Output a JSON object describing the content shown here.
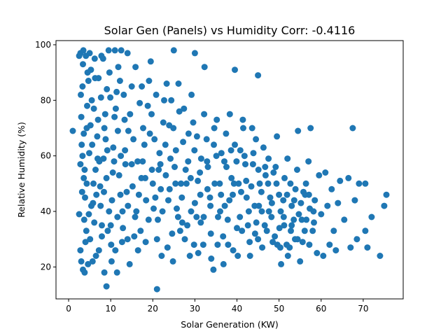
{
  "chart_data": {
    "type": "scatter",
    "title": "Solar Gen (Panels) vs Humidity Corr: -0.4116",
    "xlabel": "Solar Generation (KW)",
    "ylabel": "Relative Humidity (%)",
    "xlim": [
      -3.0,
      79.5
    ],
    "ylim": [
      8.5,
      101.5
    ],
    "xticks": [
      0,
      10,
      20,
      30,
      40,
      50,
      60,
      70
    ],
    "yticks": [
      20,
      40,
      60,
      80,
      100
    ],
    "grid": false,
    "legend": "none",
    "marker_color": "#1f77b4",
    "correlation": -0.4116,
    "points": [
      [
        1.0,
        69
      ],
      [
        2.5,
        96
      ],
      [
        2.8,
        97
      ],
      [
        3.5,
        98
      ],
      [
        4.1,
        96
      ],
      [
        5.0,
        97
      ],
      [
        6.2,
        95
      ],
      [
        7.8,
        96
      ],
      [
        9.5,
        98
      ],
      [
        11.0,
        98
      ],
      [
        12.5,
        98
      ],
      [
        14.0,
        97
      ],
      [
        2.5,
        39
      ],
      [
        2.8,
        26
      ],
      [
        3.0,
        22
      ],
      [
        3.4,
        19
      ],
      [
        3.8,
        18
      ],
      [
        4.6,
        21
      ],
      [
        5.7,
        22
      ],
      [
        7.2,
        26
      ],
      [
        8.5,
        18
      ],
      [
        9.0,
        13
      ],
      [
        10.2,
        22
      ],
      [
        11.5,
        18
      ],
      [
        2.8,
        57
      ],
      [
        3.1,
        64
      ],
      [
        3.0,
        74
      ],
      [
        3.3,
        85
      ],
      [
        3.6,
        52
      ],
      [
        3.9,
        45
      ],
      [
        4.2,
        33
      ],
      [
        4.5,
        90
      ],
      [
        4.9,
        61
      ],
      [
        5.2,
        71
      ],
      [
        5.5,
        80
      ],
      [
        5.8,
        43
      ],
      [
        6.1,
        36
      ],
      [
        6.4,
        55
      ],
      [
        6.8,
        67
      ],
      [
        7.1,
        88
      ],
      [
        7.5,
        49
      ],
      [
        7.9,
        31
      ],
      [
        8.3,
        59
      ],
      [
        8.7,
        75
      ],
      [
        9.1,
        84
      ],
      [
        9.6,
        40
      ],
      [
        10.1,
        28
      ],
      [
        10.6,
        63
      ],
      [
        11.2,
        77
      ],
      [
        11.8,
        92
      ],
      [
        12.3,
        46
      ],
      [
        12.9,
        34
      ],
      [
        13.5,
        57
      ],
      [
        14.2,
        69
      ],
      [
        15.0,
        85
      ],
      [
        15.8,
        38
      ],
      [
        16.5,
        26
      ],
      [
        17.3,
        52
      ],
      [
        18.0,
        64
      ],
      [
        18.8,
        78
      ],
      [
        19.5,
        94
      ],
      [
        20.2,
        41
      ],
      [
        21.0,
        30
      ],
      [
        21.0,
        12
      ],
      [
        21.8,
        57
      ],
      [
        22.5,
        72
      ],
      [
        23.3,
        86
      ],
      [
        24.0,
        48
      ],
      [
        24.8,
        22
      ],
      [
        25.0,
        98
      ],
      [
        25.5,
        62
      ],
      [
        26.3,
        76
      ],
      [
        27.0,
        36
      ],
      [
        27.8,
        55
      ],
      [
        28.5,
        68
      ],
      [
        29.2,
        82
      ],
      [
        30.0,
        97
      ],
      [
        30.0,
        43
      ],
      [
        30.8,
        25
      ],
      [
        31.5,
        59
      ],
      [
        32.3,
        92
      ],
      [
        33.0,
        48
      ],
      [
        33.8,
        32
      ],
      [
        34.5,
        64
      ],
      [
        35.2,
        73
      ],
      [
        36.0,
        40
      ],
      [
        36.8,
        21
      ],
      [
        37.5,
        56
      ],
      [
        38.3,
        75
      ],
      [
        39.0,
        46
      ],
      [
        39.5,
        91
      ],
      [
        40.0,
        34
      ],
      [
        40.8,
        62
      ],
      [
        41.5,
        70
      ],
      [
        42.2,
        51
      ],
      [
        43.0,
        29
      ],
      [
        43.8,
        57
      ],
      [
        44.5,
        66
      ],
      [
        45.0,
        89
      ],
      [
        45.2,
        42
      ],
      [
        46.0,
        27
      ],
      [
        46.8,
        53
      ],
      [
        47.5,
        59
      ],
      [
        48.2,
        38
      ],
      [
        49.0,
        31
      ],
      [
        49.5,
        67
      ],
      [
        50.0,
        46
      ],
      [
        50.5,
        21
      ],
      [
        51.2,
        35
      ],
      [
        52.0,
        59
      ],
      [
        52.5,
        27
      ],
      [
        53.0,
        42
      ],
      [
        53.8,
        30
      ],
      [
        54.5,
        69
      ],
      [
        55.0,
        22
      ],
      [
        55.8,
        47
      ],
      [
        56.5,
        37
      ],
      [
        57.0,
        58
      ],
      [
        57.5,
        70
      ],
      [
        58.0,
        33
      ],
      [
        58.5,
        44
      ],
      [
        59.0,
        25
      ],
      [
        59.5,
        53
      ],
      [
        60.0,
        39
      ],
      [
        60.5,
        24
      ],
      [
        61.0,
        54
      ],
      [
        61.5,
        42
      ],
      [
        62.0,
        28
      ],
      [
        62.5,
        48
      ],
      [
        63.0,
        33
      ],
      [
        63.5,
        26
      ],
      [
        64.0,
        43
      ],
      [
        64.5,
        51
      ],
      [
        65.5,
        37
      ],
      [
        66.5,
        52
      ],
      [
        67.0,
        27
      ],
      [
        67.5,
        70
      ],
      [
        68.0,
        44
      ],
      [
        68.5,
        30
      ],
      [
        69.0,
        50
      ],
      [
        70.5,
        33
      ],
      [
        70.5,
        50
      ],
      [
        71.0,
        27
      ],
      [
        72.0,
        38
      ],
      [
        74.0,
        24
      ],
      [
        75.0,
        42
      ],
      [
        75.5,
        46
      ],
      [
        3.2,
        47
      ],
      [
        3.6,
        68
      ],
      [
        4.0,
        29
      ],
      [
        4.4,
        78
      ],
      [
        4.8,
        39
      ],
      [
        5.3,
        91
      ],
      [
        5.9,
        50
      ],
      [
        6.5,
        24
      ],
      [
        7.0,
        73
      ],
      [
        7.6,
        42
      ],
      [
        8.2,
        95
      ],
      [
        8.8,
        66
      ],
      [
        9.3,
        33
      ],
      [
        9.9,
        81
      ],
      [
        10.5,
        54
      ],
      [
        11.1,
        26
      ],
      [
        11.7,
        69
      ],
      [
        12.2,
        87
      ],
      [
        12.8,
        40
      ],
      [
        13.4,
        62
      ],
      [
        14.0,
        30
      ],
      [
        14.6,
        75
      ],
      [
        15.2,
        49
      ],
      [
        15.9,
        92
      ],
      [
        16.4,
        58
      ],
      [
        17.1,
        33
      ],
      [
        17.7,
        70
      ],
      [
        18.4,
        44
      ],
      [
        19.1,
        87
      ],
      [
        19.8,
        55
      ],
      [
        20.4,
        66
      ],
      [
        21.2,
        37
      ],
      [
        21.9,
        48
      ],
      [
        22.7,
        80
      ],
      [
        23.5,
        27
      ],
      [
        24.2,
        59
      ],
      [
        24.9,
        70
      ],
      [
        25.7,
        41
      ],
      [
        26.5,
        33
      ],
      [
        27.2,
        65
      ],
      [
        28.0,
        50
      ],
      [
        28.8,
        24
      ],
      [
        29.6,
        72
      ],
      [
        30.4,
        38
      ],
      [
        31.2,
        54
      ],
      [
        32.0,
        28
      ],
      [
        32.8,
        66
      ],
      [
        33.6,
        45
      ],
      [
        34.4,
        19
      ],
      [
        35.1,
        60
      ],
      [
        35.9,
        50
      ],
      [
        36.7,
        31
      ],
      [
        37.4,
        68
      ],
      [
        38.2,
        44
      ],
      [
        39.1,
        26
      ],
      [
        39.9,
        58
      ],
      [
        40.7,
        38
      ],
      [
        41.4,
        73
      ],
      [
        42.3,
        45
      ],
      [
        43.1,
        24
      ],
      [
        43.9,
        61
      ],
      [
        44.6,
        36
      ],
      [
        45.4,
        50
      ],
      [
        46.3,
        63
      ],
      [
        47.1,
        33
      ],
      [
        47.9,
        45
      ],
      [
        48.7,
        54
      ],
      [
        49.6,
        28
      ],
      [
        50.4,
        40
      ],
      [
        51.3,
        52
      ],
      [
        52.1,
        24
      ],
      [
        53.0,
        35
      ],
      [
        53.9,
        48
      ],
      [
        54.7,
        39
      ],
      [
        55.6,
        29
      ],
      [
        56.4,
        50
      ],
      [
        57.3,
        41
      ],
      [
        58.3,
        36
      ],
      [
        2.9,
        82
      ],
      [
        3.3,
        60
      ],
      [
        3.7,
        37
      ],
      [
        4.3,
        50
      ],
      [
        4.7,
        87
      ],
      [
        5.1,
        30
      ],
      [
        5.6,
        64
      ],
      [
        6.0,
        77
      ],
      [
        6.6,
        46
      ],
      [
        7.3,
        58
      ],
      [
        7.9,
        35
      ],
      [
        8.5,
        70
      ],
      [
        9.0,
        52
      ],
      [
        9.7,
        90
      ],
      [
        10.3,
        44
      ],
      [
        10.9,
        74
      ],
      [
        11.6,
        38
      ],
      [
        12.4,
        60
      ],
      [
        13.1,
        82
      ],
      [
        13.8,
        47
      ],
      [
        14.5,
        21
      ],
      [
        15.4,
        66
      ],
      [
        16.1,
        40
      ],
      [
        16.9,
        79
      ],
      [
        17.6,
        58
      ],
      [
        18.3,
        29
      ],
      [
        19.3,
        68
      ],
      [
        20.0,
        50
      ],
      [
        20.8,
        82
      ],
      [
        21.6,
        61
      ],
      [
        22.3,
        40
      ],
      [
        23.1,
        53
      ],
      [
        23.9,
        71
      ],
      [
        24.6,
        32
      ],
      [
        25.4,
        50
      ],
      [
        26.1,
        86
      ],
      [
        26.9,
        45
      ],
      [
        27.6,
        30
      ],
      [
        28.4,
        58
      ],
      [
        29.1,
        40
      ],
      [
        29.9,
        62
      ],
      [
        30.7,
        51
      ],
      [
        31.4,
        36
      ],
      [
        32.2,
        75
      ],
      [
        33.1,
        56
      ],
      [
        33.9,
        23
      ],
      [
        34.7,
        50
      ],
      [
        35.5,
        38
      ],
      [
        36.3,
        61
      ],
      [
        37.1,
        42
      ],
      [
        37.9,
        28
      ],
      [
        38.7,
        52
      ],
      [
        39.5,
        64
      ],
      [
        40.4,
        50
      ],
      [
        41.2,
        33
      ],
      [
        42.0,
        57
      ],
      [
        42.8,
        40
      ],
      [
        43.6,
        70
      ],
      [
        44.3,
        32
      ],
      [
        45.1,
        55
      ],
      [
        45.9,
        40
      ],
      [
        46.6,
        35
      ],
      [
        47.4,
        50
      ],
      [
        48.3,
        43
      ],
      [
        49.2,
        56
      ],
      [
        50.1,
        34
      ],
      [
        51.0,
        44
      ],
      [
        51.8,
        28
      ],
      [
        52.7,
        50
      ],
      [
        53.5,
        37
      ],
      [
        54.3,
        55
      ],
      [
        55.2,
        43
      ],
      [
        56.1,
        33
      ],
      [
        57.1,
        46
      ],
      [
        3.4,
        93
      ],
      [
        3.8,
        55
      ],
      [
        4.3,
        70
      ],
      [
        5.4,
        42
      ],
      [
        6.3,
        88
      ],
      [
        6.9,
        59
      ],
      [
        7.7,
        81
      ],
      [
        8.4,
        47
      ],
      [
        9.2,
        62
      ],
      [
        10.0,
        35
      ],
      [
        10.8,
        58
      ],
      [
        11.4,
        83
      ],
      [
        12.0,
        53
      ],
      [
        12.7,
        29
      ],
      [
        13.3,
        73
      ],
      [
        14.1,
        42
      ],
      [
        15.0,
        57
      ],
      [
        15.6,
        31
      ],
      [
        16.7,
        46
      ],
      [
        17.4,
        85
      ],
      [
        18.2,
        52
      ],
      [
        19.0,
        37
      ],
      [
        19.7,
        75
      ],
      [
        20.6,
        45
      ],
      [
        21.4,
        55
      ],
      [
        22.1,
        24
      ],
      [
        23.0,
        64
      ],
      [
        23.7,
        44
      ],
      [
        24.4,
        80
      ],
      [
        25.2,
        56
      ],
      [
        26.0,
        38
      ],
      [
        26.7,
        50
      ],
      [
        27.4,
        77
      ],
      [
        28.2,
        35
      ],
      [
        29.0,
        52
      ],
      [
        29.8,
        28
      ],
      [
        30.5,
        67
      ],
      [
        31.3,
        46
      ],
      [
        32.1,
        38
      ],
      [
        32.9,
        58
      ],
      [
        33.7,
        42
      ],
      [
        34.6,
        70
      ],
      [
        35.4,
        28
      ],
      [
        36.2,
        46
      ],
      [
        37.0,
        58
      ],
      [
        37.8,
        37
      ],
      [
        38.6,
        62
      ],
      [
        39.3,
        50
      ],
      [
        40.2,
        24
      ],
      [
        41.0,
        47
      ],
      [
        41.8,
        60
      ],
      [
        42.6,
        35
      ],
      [
        43.4,
        49
      ],
      [
        44.2,
        42
      ],
      [
        45.0,
        30
      ],
      [
        45.8,
        47
      ],
      [
        46.7,
        56
      ],
      [
        47.6,
        40
      ],
      [
        48.5,
        29
      ],
      [
        49.4,
        50
      ],
      [
        50.3,
        27
      ],
      [
        51.1,
        38
      ],
      [
        51.9,
        46
      ],
      [
        52.8,
        33
      ],
      [
        53.6,
        44
      ],
      [
        54.4,
        30
      ],
      [
        55.4,
        37
      ],
      [
        56.2,
        46
      ],
      [
        57.2,
        28
      ],
      [
        58.2,
        40
      ]
    ]
  }
}
